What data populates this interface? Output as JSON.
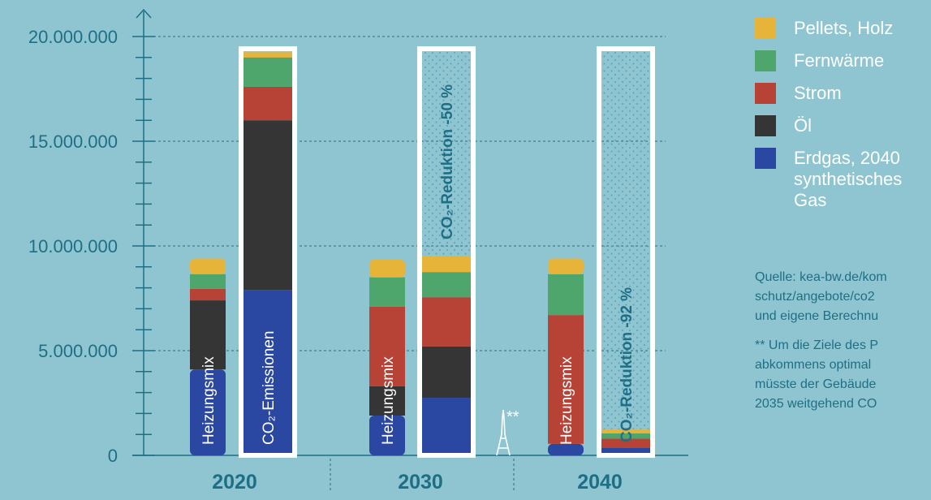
{
  "chart_data": {
    "type": "bar",
    "stacked": true,
    "y_ticks": [
      "0",
      "5.000.000",
      "10.000.000",
      "15.000.000",
      "20.000.000"
    ],
    "ylim": [
      0,
      20000000
    ],
    "gridlines": true,
    "groups": [
      "2020",
      "2030",
      "2040"
    ],
    "series": [
      {
        "name": "Erdgas, 2040 synthetisches Gas",
        "color": "#2a47a1"
      },
      {
        "name": "Öl",
        "color": "#353535"
      },
      {
        "name": "Strom",
        "color": "#b64336"
      },
      {
        "name": "Fernwärme",
        "color": "#4fa66c"
      },
      {
        "name": "Pellets, Holz",
        "color": "#e7b43a"
      }
    ],
    "bars": [
      {
        "group": "2020",
        "label": "Heizungsmix",
        "values": [
          4100000,
          3300000,
          550000,
          700000,
          750000
        ]
      },
      {
        "group": "2020",
        "label": "CO₂-Emissionen",
        "values": [
          7900000,
          8100000,
          1600000,
          1400000,
          250000
        ],
        "outline_total": 19300000
      },
      {
        "group": "2030",
        "label": "Heizungsmix",
        "values": [
          1900000,
          1400000,
          3800000,
          1400000,
          850000
        ]
      },
      {
        "group": "2030",
        "label": "",
        "values": [
          2750000,
          2450000,
          2350000,
          1200000,
          750000
        ],
        "outline_total": 19300000,
        "reduction_label": "CO₂-Reduktion -50 %"
      },
      {
        "group": "2040",
        "label": "Heizungsmix",
        "values": [
          550000,
          0,
          6150000,
          1950000,
          750000
        ]
      },
      {
        "group": "2040",
        "label": "",
        "values": [
          350000,
          0,
          450000,
          250000,
          200000
        ],
        "outline_total": 19300000,
        "reduction_label": "CO₂-Reduktion -92 %"
      }
    ],
    "annotation": "**"
  },
  "notes": {
    "source": [
      "Quelle: kea-bw.de/kom",
      "schutz/angebote/co2",
      "und eigene Berechnu"
    ],
    "footnote": [
      "** Um die Ziele des P",
      "abkommens optimal",
      "müsste der Gebäude",
      "2035 weitgehend CO"
    ]
  }
}
